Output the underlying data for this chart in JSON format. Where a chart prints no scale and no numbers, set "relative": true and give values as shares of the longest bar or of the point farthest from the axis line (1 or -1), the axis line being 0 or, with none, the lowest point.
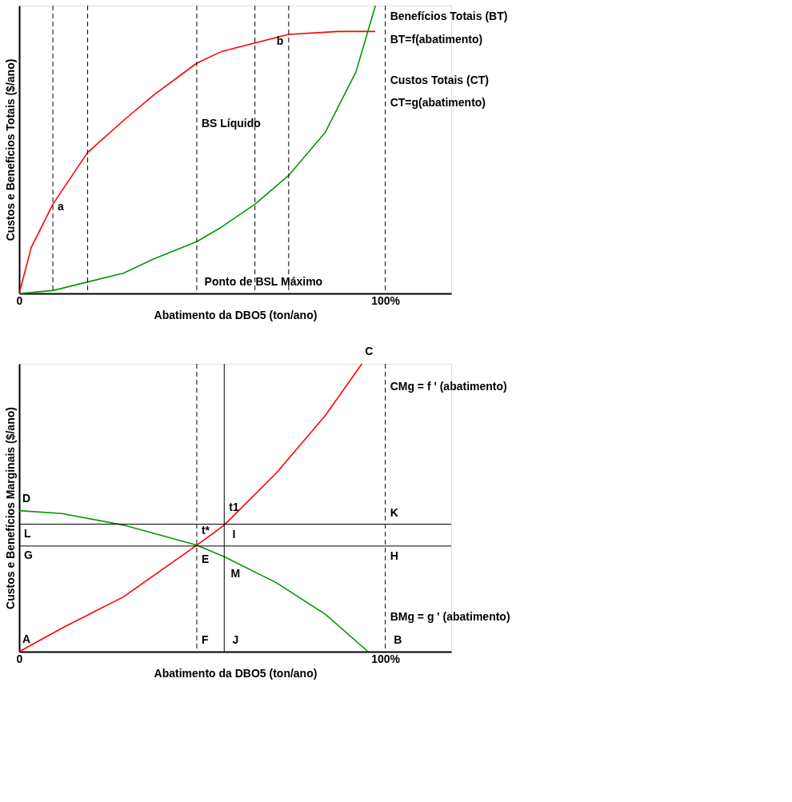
{
  "chart_data": [
    {
      "type": "line",
      "relative": true,
      "ylabel": "Custos e Benefícios Totais ($/ano)",
      "xlabel": "Abatimento da DBO5 (ton/ano)",
      "xlim": [
        0,
        118
      ],
      "xticks": [
        0,
        {
          "value": 100,
          "label": "100%"
        }
      ],
      "grid": false,
      "series": [
        {
          "color": "#ff0000",
          "x": [
            0,
            3.3,
            9.2,
            18.7,
            28.4,
            36.8,
            48.5,
            55.2,
            64.4,
            73.6,
            87,
            97.3
          ],
          "values": [
            0,
            0.16,
            0.31,
            0.49,
            0.6,
            0.69,
            0.8,
            0.84,
            0.87,
            0.9,
            0.91,
            0.91
          ]
        },
        {
          "color": "#009900",
          "x": [
            0,
            9.2,
            18.7,
            28.4,
            36.8,
            48.5,
            55.2,
            64.4,
            73.6,
            83.6,
            92,
            97.3
          ],
          "values": [
            0,
            0.01,
            0.04,
            0.07,
            0.12,
            0.18,
            0.23,
            0.31,
            0.41,
            0.56,
            0.77,
            1.0
          ]
        }
      ],
      "ref_lines": [
        {
          "axis": "x",
          "value": 9.2,
          "line_style": "dashed",
          "color": "#000000"
        },
        {
          "axis": "x",
          "value": 18.7,
          "line_style": "dashed",
          "color": "#000000"
        },
        {
          "axis": "x",
          "value": 48.5,
          "line_style": "dashed",
          "color": "#000000"
        },
        {
          "axis": "x",
          "value": 64.4,
          "line_style": "dashed",
          "color": "#000000"
        },
        {
          "axis": "x",
          "value": 73.6,
          "line_style": "dashed",
          "color": "#000000"
        },
        {
          "axis": "x",
          "value": 100,
          "line_style": "dashed",
          "color": "#000000"
        }
      ],
      "annotations": [
        {
          "text": "Benefícios Totais (BT)",
          "x": 100,
          "y": 0.96
        },
        {
          "text": "BT=f(abatimento)",
          "x": 100,
          "y": 0.88
        },
        {
          "text": "Custos Totais (CT)",
          "x": 100,
          "y": 0.74
        },
        {
          "text": "CT=g(abatimento)",
          "x": 100,
          "y": 0.66
        },
        {
          "text": "BS Líquido",
          "x": 48.5,
          "y": 0.59
        },
        {
          "text": "a",
          "x": 9.2,
          "y": 0.3
        },
        {
          "text": "b",
          "x": 69,
          "y": 0.875
        },
        {
          "text": "Ponto de BSL Máximo",
          "x": 49.3,
          "y": 0.04
        }
      ]
    },
    {
      "type": "line",
      "relative": true,
      "ylabel": "Custos e Benefícios Marginais ($/ano)",
      "xlabel": "Abatimento da DBO5 (ton/ano)",
      "xlim": [
        0,
        118
      ],
      "xticks": [
        0,
        {
          "value": 100,
          "label": "100%"
        }
      ],
      "grid": false,
      "series": [
        {
          "color": "#ff0000",
          "x": [
            0,
            11.7,
            28.4,
            48.5,
            56,
            70.2,
            83.6,
            93.6
          ],
          "values": [
            0,
            0.082,
            0.19,
            0.37,
            0.44,
            0.62,
            0.82,
            1.0
          ]
        },
        {
          "color": "#009900",
          "x": [
            0,
            11.7,
            28.4,
            48.5,
            56,
            70.2,
            83.6,
            95.3
          ],
          "values": [
            0.49,
            0.48,
            0.44,
            0.37,
            0.33,
            0.24,
            0.13,
            0
          ]
        }
      ],
      "ref_lines": [
        {
          "axis": "y",
          "value": 0.443,
          "label": "L",
          "color": "#000000",
          "line_style": "solid"
        },
        {
          "axis": "y",
          "value": 0.367,
          "label": "G",
          "color": "#000000",
          "line_style": "solid"
        },
        {
          "axis": "x",
          "value": 48.5,
          "line_style": "dashed",
          "color": "#000000"
        },
        {
          "axis": "x",
          "value": 56,
          "line_style": "solid",
          "color": "#000000"
        },
        {
          "axis": "x",
          "value": 100,
          "line_style": "dashed",
          "color": "#000000"
        }
      ],
      "annotations": [
        {
          "text": "CMg = f ' (abatimento)",
          "x": 100,
          "y": 0.92
        },
        {
          "text": "BMg = g ' (abatimento)",
          "x": 100,
          "y": 0.12
        },
        {
          "text": "C",
          "x": 93.6,
          "y": 1.0
        },
        {
          "text": "D",
          "x": 0,
          "y": 0.49
        },
        {
          "text": "t1",
          "x": 56,
          "y": 0.5
        },
        {
          "text": "K",
          "x": 100,
          "y": 0.48
        },
        {
          "text": "t*",
          "x": 48.5,
          "y": 0.42
        },
        {
          "text": "I",
          "x": 56.9,
          "y": 0.405
        },
        {
          "text": "E",
          "x": 48.5,
          "y": 0.32
        },
        {
          "text": "H",
          "x": 100,
          "y": 0.33
        },
        {
          "text": "M",
          "x": 56.5,
          "y": 0.27
        },
        {
          "text": "A",
          "x": 0,
          "y": 0
        },
        {
          "text": "F",
          "x": 48.5,
          "y": 0.04
        },
        {
          "text": "J",
          "x": 56.9,
          "y": 0.04
        },
        {
          "text": "B",
          "x": 101,
          "y": 0.04
        }
      ]
    }
  ]
}
